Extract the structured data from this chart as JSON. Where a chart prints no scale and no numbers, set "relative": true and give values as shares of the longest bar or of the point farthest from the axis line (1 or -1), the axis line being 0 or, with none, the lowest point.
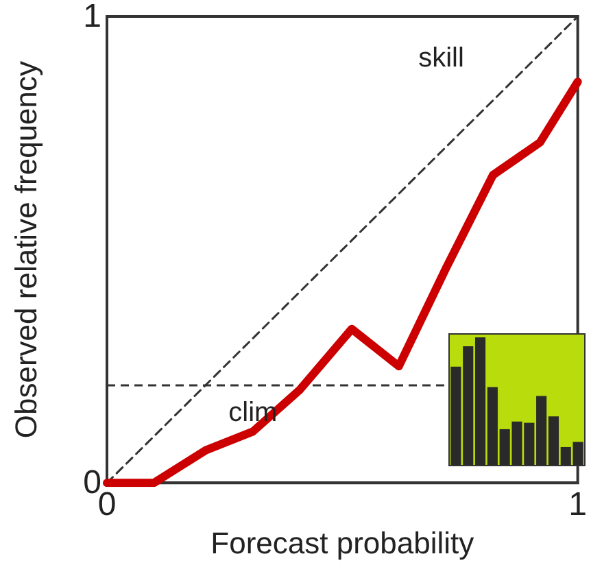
{
  "chart_data": [
    {
      "type": "line",
      "xlabel": "Forecast probability",
      "ylabel": "Observed relative frequency",
      "xlim": [
        0,
        1
      ],
      "ylim": [
        0,
        1
      ],
      "xticks": [
        0,
        1
      ],
      "yticks": [
        0,
        1
      ],
      "grid": false,
      "marker": "none",
      "series": [
        {
          "color": "#cc0000",
          "x": [
            0,
            0.1,
            0.21,
            0.31,
            0.41,
            0.52,
            0.62,
            0.72,
            0.82,
            0.92,
            1.0
          ],
          "values": [
            0,
            0,
            0.07,
            0.11,
            0.2,
            0.33,
            0.25,
            0.46,
            0.66,
            0.73,
            0.86
          ]
        },
        {
          "color": "#333333",
          "x": [
            0,
            1
          ],
          "values": [
            0,
            1
          ],
          "line_style": "dashed"
        }
      ],
      "ref_lines": [
        {
          "axis": "y",
          "value": 0.21,
          "color": "#333333",
          "line_style": "dashed"
        }
      ],
      "annotations": [
        "skill",
        "clim"
      ]
    },
    {
      "type": "bar",
      "relative": true,
      "categories": [
        null,
        null,
        null,
        null,
        null,
        null,
        null,
        null,
        null,
        null,
        null
      ],
      "color": "#2a2a2a",
      "values": [
        0.77,
        0.93,
        1,
        0.61,
        0.28,
        0.34,
        0.33,
        0.54,
        0.38,
        0.14,
        0.18
      ]
    }
  ]
}
